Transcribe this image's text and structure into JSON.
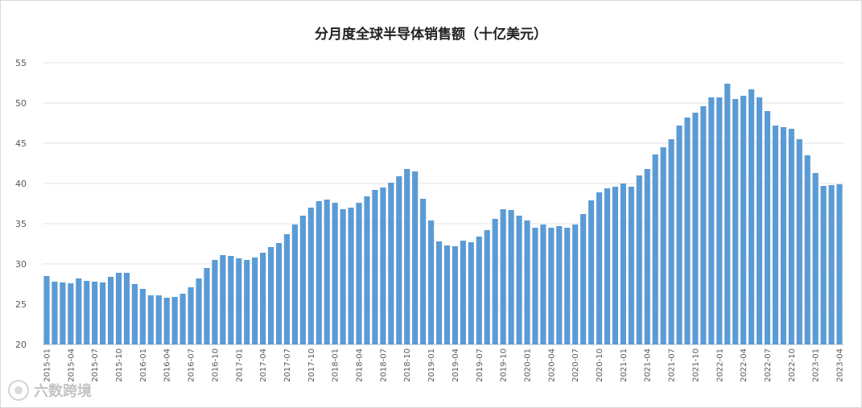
{
  "chart_data": {
    "type": "bar",
    "title": "分月度全球半导体销售额（十亿美元）",
    "xlabel": "",
    "ylabel": "",
    "ylim": [
      20,
      55
    ],
    "yticks": [
      20,
      25,
      30,
      35,
      40,
      45,
      50,
      55
    ],
    "grid": true,
    "legend": "none",
    "bar_color": "#5b9bd5",
    "categories": [
      "2015-01",
      "2015-02",
      "2015-03",
      "2015-04",
      "2015-05",
      "2015-06",
      "2015-07",
      "2015-08",
      "2015-09",
      "2015-10",
      "2015-11",
      "2015-12",
      "2016-01",
      "2016-02",
      "2016-03",
      "2016-04",
      "2016-05",
      "2016-06",
      "2016-07",
      "2016-08",
      "2016-09",
      "2016-10",
      "2016-11",
      "2016-12",
      "2017-01",
      "2017-02",
      "2017-03",
      "2017-04",
      "2017-05",
      "2017-06",
      "2017-07",
      "2017-08",
      "2017-09",
      "2017-10",
      "2017-11",
      "2017-12",
      "2018-01",
      "2018-02",
      "2018-03",
      "2018-04",
      "2018-05",
      "2018-06",
      "2018-07",
      "2018-08",
      "2018-09",
      "2018-10",
      "2018-11",
      "2018-12",
      "2019-01",
      "2019-02",
      "2019-03",
      "2019-04",
      "2019-05",
      "2019-06",
      "2019-07",
      "2019-08",
      "2019-09",
      "2019-10",
      "2019-11",
      "2019-12",
      "2020-01",
      "2020-02",
      "2020-03",
      "2020-04",
      "2020-05",
      "2020-06",
      "2020-07",
      "2020-08",
      "2020-09",
      "2020-10",
      "2020-11",
      "2020-12",
      "2021-01",
      "2021-02",
      "2021-03",
      "2021-04",
      "2021-05",
      "2021-06",
      "2021-07",
      "2021-08",
      "2021-09",
      "2021-10",
      "2021-11",
      "2021-12",
      "2022-01",
      "2022-02",
      "2022-03",
      "2022-04",
      "2022-05",
      "2022-06",
      "2022-07",
      "2022-08",
      "2022-09",
      "2022-10",
      "2022-11",
      "2022-12",
      "2023-01",
      "2023-02",
      "2023-03",
      "2023-04"
    ],
    "xtick_labels": [
      "2015-01",
      "2015-04",
      "2015-07",
      "2015-10",
      "2016-01",
      "2016-04",
      "2016-07",
      "2016-10",
      "2017-01",
      "2017-04",
      "2017-07",
      "2017-10",
      "2018-01",
      "2018-04",
      "2018-07",
      "2018-10",
      "2019-01",
      "2019-04",
      "2019-07",
      "2019-10",
      "2020-01",
      "2020-04",
      "2020-07",
      "2020-10",
      "2021-01",
      "2021-04",
      "2021-07",
      "2021-10",
      "2022-01",
      "2022-04",
      "2022-07",
      "2022-10",
      "2023-01",
      "2023-04"
    ],
    "values": [
      28.5,
      27.8,
      27.7,
      27.6,
      28.2,
      27.9,
      27.8,
      27.7,
      28.4,
      28.9,
      28.9,
      27.5,
      26.9,
      26.1,
      26.1,
      25.8,
      25.9,
      26.3,
      27.1,
      28.2,
      29.5,
      30.5,
      31.1,
      31.0,
      30.7,
      30.5,
      30.8,
      31.4,
      32.1,
      32.6,
      33.7,
      34.9,
      36.0,
      37.0,
      37.8,
      38.0,
      37.6,
      36.8,
      37.0,
      37.6,
      38.4,
      39.2,
      39.5,
      40.1,
      40.9,
      41.8,
      41.5,
      38.1,
      35.4,
      32.8,
      32.3,
      32.2,
      32.9,
      32.7,
      33.4,
      34.2,
      35.6,
      36.8,
      36.7,
      36.0,
      35.4,
      34.5,
      34.9,
      34.5,
      34.7,
      34.5,
      34.9,
      36.2,
      37.9,
      38.9,
      39.4,
      39.6,
      40.0,
      39.6,
      41.0,
      41.8,
      43.6,
      44.5,
      45.5,
      47.2,
      48.2,
      48.8,
      49.6,
      50.7,
      50.7,
      52.4,
      50.5,
      50.9,
      51.7,
      50.7,
      49.0,
      47.2,
      47.0,
      46.8,
      45.5,
      43.5,
      41.3,
      39.7,
      39.8,
      39.9
    ]
  },
  "watermark": {
    "icon": "sparkle-circle-icon",
    "text": "六数跨境"
  }
}
